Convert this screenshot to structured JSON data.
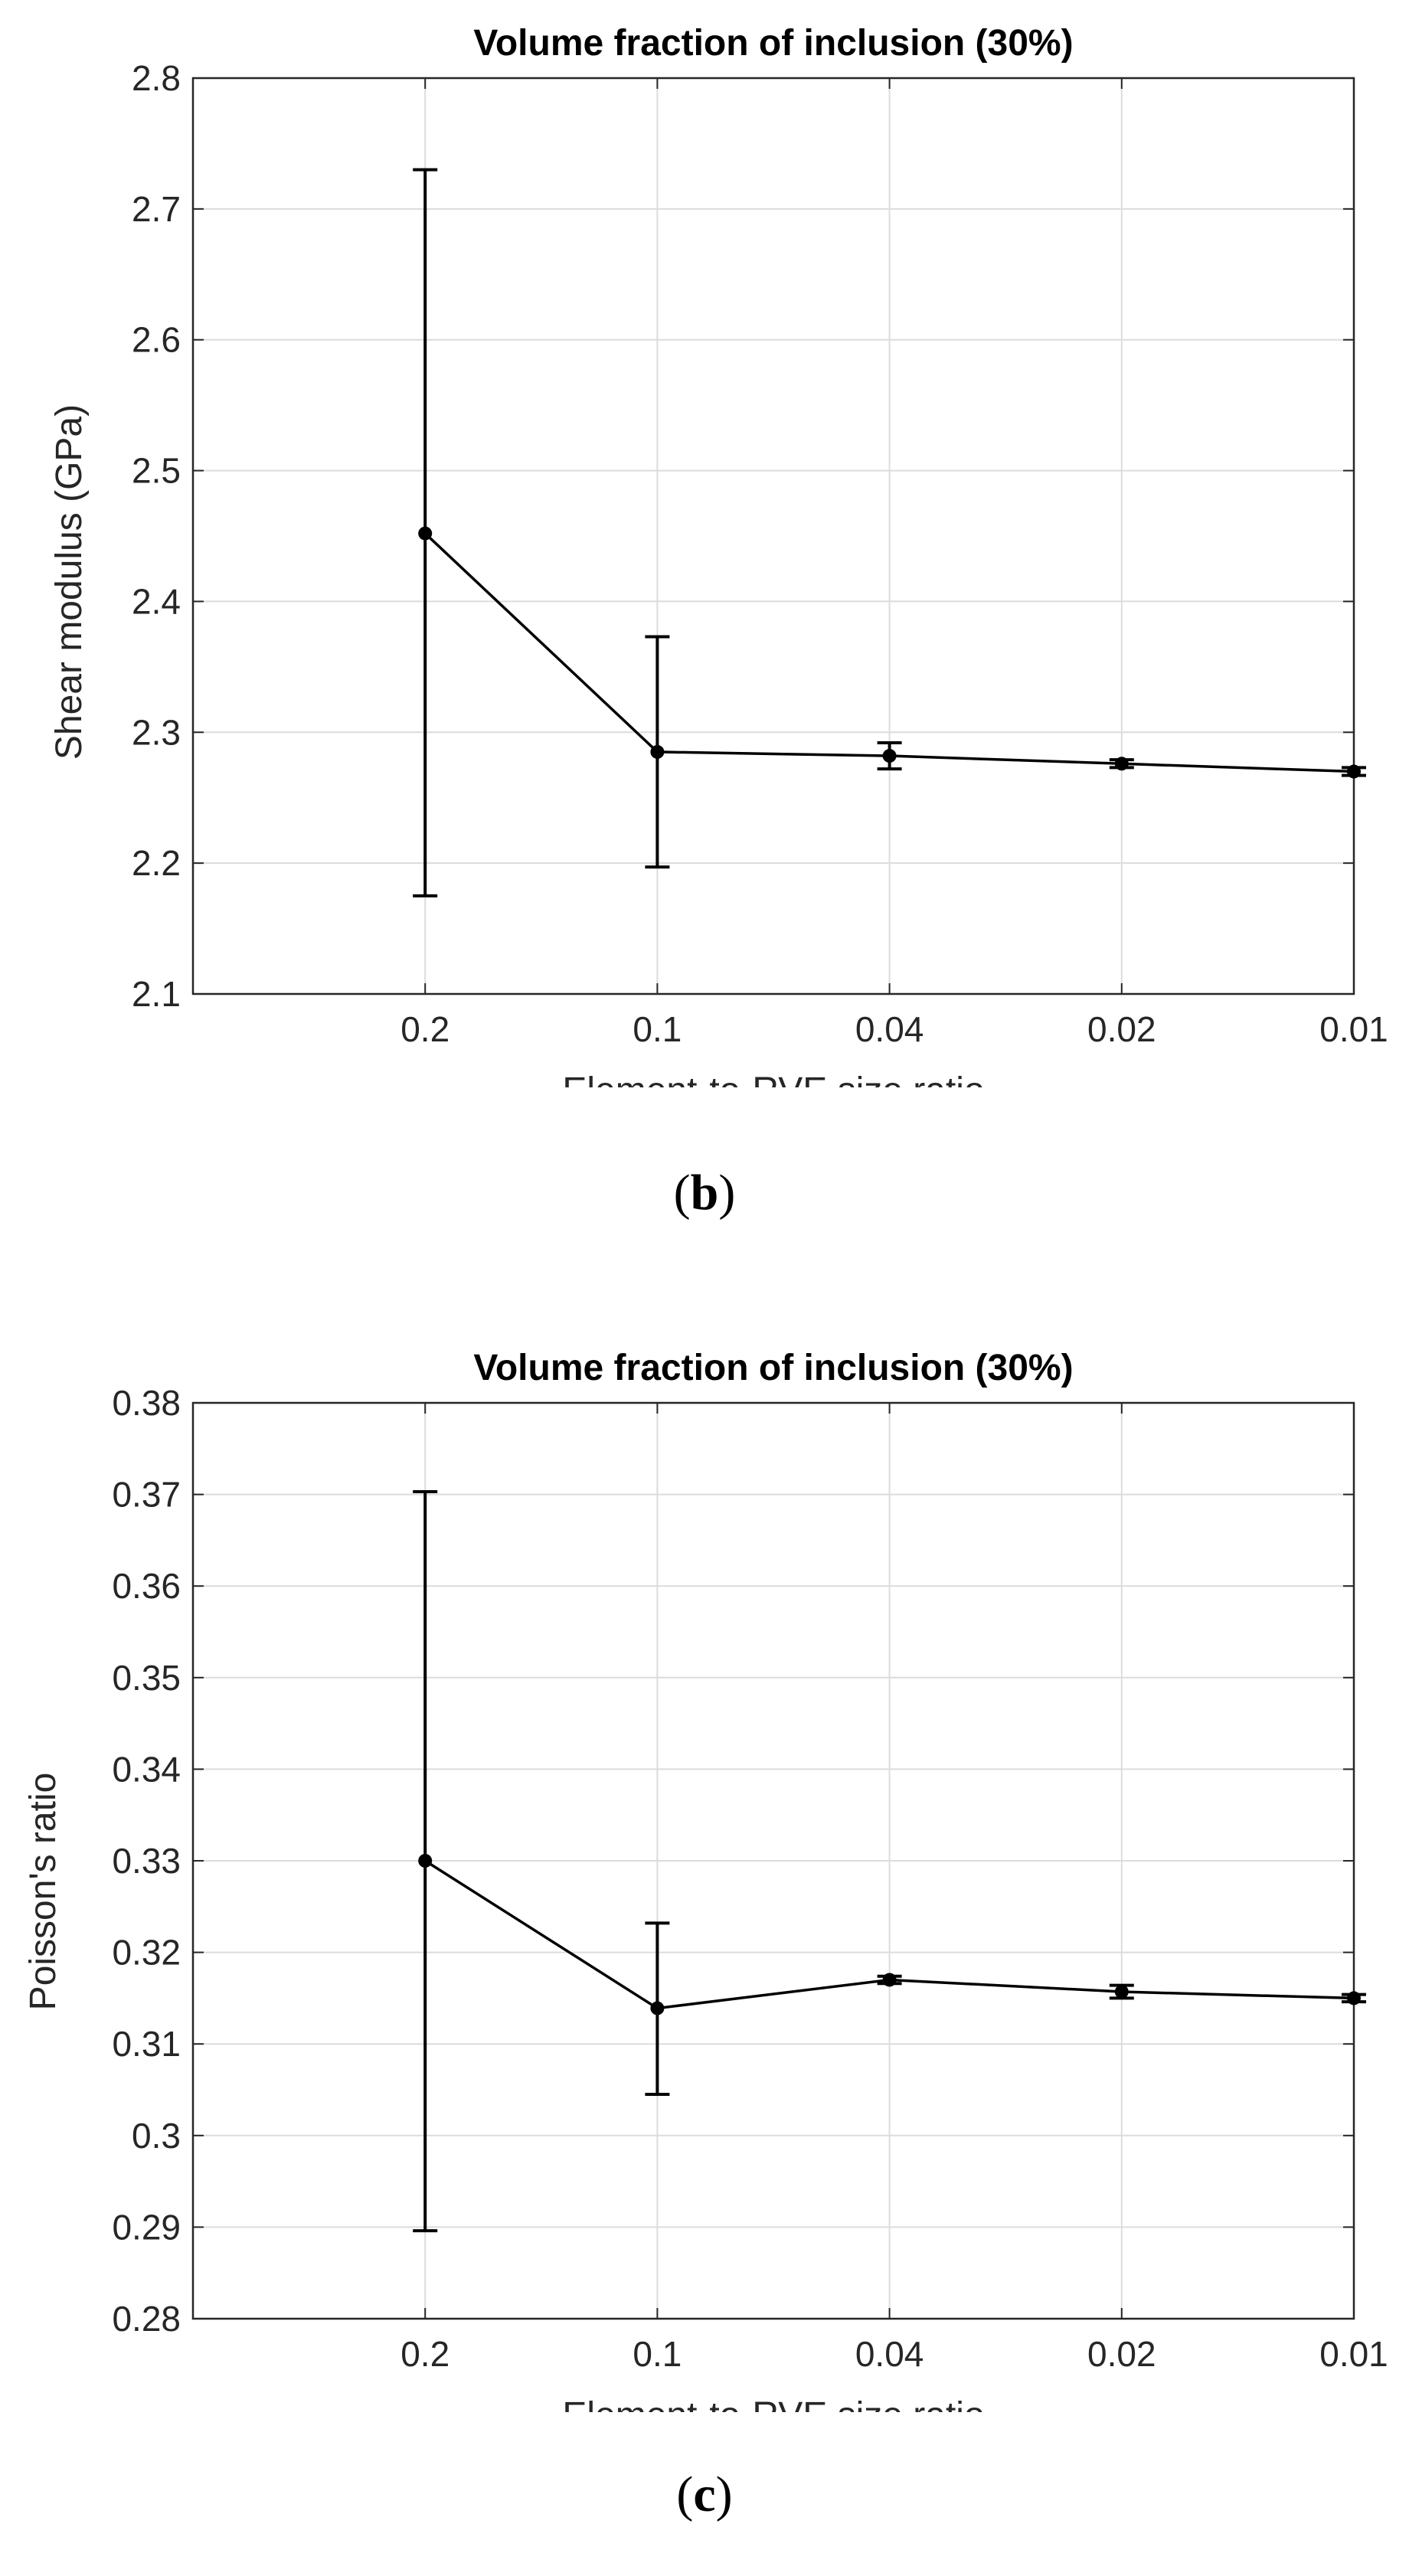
{
  "chart_data": [
    {
      "type": "line",
      "panel": "(b)",
      "title": "Volume fraction of inclusion (30%)",
      "xlabel": "Element-to-RVE size ratio",
      "ylabel": "Shear modulus (GPa)",
      "categories": [
        "0.2",
        "0.1",
        "0.04",
        "0.02",
        "0.01"
      ],
      "ylim": [
        2.1,
        2.8
      ],
      "yticks": [
        "2.1",
        "2.2",
        "2.3",
        "2.4",
        "2.5",
        "2.6",
        "2.7",
        "2.8"
      ],
      "grid": true,
      "series": [
        {
          "name": "Shear modulus",
          "values": [
            2.452,
            2.285,
            2.282,
            2.276,
            2.27
          ],
          "err_low": [
            2.175,
            2.197,
            2.272,
            2.273,
            2.267
          ],
          "err_high": [
            2.73,
            2.373,
            2.292,
            2.279,
            2.273
          ]
        }
      ]
    },
    {
      "type": "line",
      "panel": "(c)",
      "title": "Volume fraction of inclusion (30%)",
      "xlabel": "Element-to-RVE size ratio",
      "ylabel": "Poisson's ratio",
      "categories": [
        "0.2",
        "0.1",
        "0.04",
        "0.02",
        "0.01"
      ],
      "ylim": [
        0.28,
        0.38
      ],
      "yticks": [
        "0.28",
        "0.29",
        "0.3",
        "0.31",
        "0.32",
        "0.33",
        "0.34",
        "0.35",
        "0.36",
        "0.37",
        "0.38"
      ],
      "grid": true,
      "series": [
        {
          "name": "Poisson's ratio",
          "values": [
            0.33,
            0.3139,
            0.317,
            0.3157,
            0.315
          ],
          "err_low": [
            0.2896,
            0.3045,
            0.3166,
            0.315,
            0.3146
          ],
          "err_high": [
            0.3703,
            0.3232,
            0.3174,
            0.3164,
            0.3154
          ]
        }
      ]
    }
  ],
  "panels": {
    "b": "b",
    "c": "c"
  },
  "colors": {
    "line": "#000000",
    "grid": "#dcdcdc",
    "axis": "#262626",
    "text": "#262626",
    "title": "#000000"
  }
}
